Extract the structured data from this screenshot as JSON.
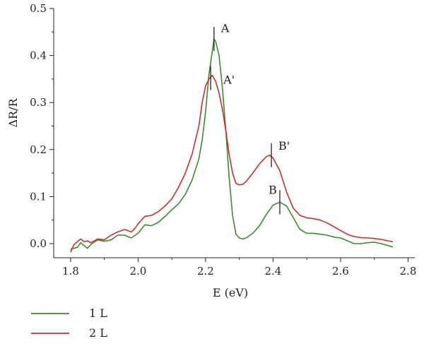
{
  "chart_data": {
    "type": "line",
    "xlabel": "E (eV)",
    "ylabel": "ΔR/R",
    "xlim": [
      1.75,
      2.82
    ],
    "ylim": [
      -0.03,
      0.5
    ],
    "xticks": [
      1.8,
      2.0,
      2.2,
      2.4,
      2.6,
      2.8
    ],
    "xtick_labels": [
      "1.8",
      "2.0",
      "2.2",
      "2.4",
      "2.6",
      "2.8"
    ],
    "yticks": [
      0.0,
      0.1,
      0.2,
      0.3,
      0.4,
      0.5
    ],
    "ytick_labels": [
      "0.0",
      "0.1",
      "0.2",
      "0.3",
      "0.4",
      "0.5"
    ],
    "grid": false,
    "legend_position": "bottom-left",
    "series": [
      {
        "name": "1 L",
        "color": "#3a8c2e",
        "x": [
          1.8,
          1.82,
          1.83,
          1.84,
          1.85,
          1.86,
          1.88,
          1.9,
          1.92,
          1.94,
          1.96,
          1.98,
          2.0,
          2.02,
          2.04,
          2.06,
          2.08,
          2.1,
          2.12,
          2.14,
          2.16,
          2.18,
          2.19,
          2.2,
          2.21,
          2.22,
          2.225,
          2.23,
          2.24,
          2.25,
          2.26,
          2.27,
          2.28,
          2.29,
          2.3,
          2.31,
          2.32,
          2.34,
          2.36,
          2.38,
          2.4,
          2.42,
          2.44,
          2.46,
          2.48,
          2.5,
          2.52,
          2.54,
          2.56,
          2.58,
          2.6,
          2.62,
          2.64,
          2.66,
          2.68,
          2.7,
          2.72,
          2.74,
          2.755
        ],
        "y": [
          -0.012,
          -0.008,
          0.002,
          -0.004,
          -0.01,
          -0.002,
          0.008,
          0.005,
          0.008,
          0.018,
          0.018,
          0.012,
          0.022,
          0.04,
          0.038,
          0.045,
          0.058,
          0.072,
          0.085,
          0.105,
          0.135,
          0.18,
          0.22,
          0.28,
          0.36,
          0.41,
          0.435,
          0.43,
          0.4,
          0.33,
          0.24,
          0.14,
          0.06,
          0.02,
          0.012,
          0.01,
          0.012,
          0.022,
          0.038,
          0.062,
          0.082,
          0.088,
          0.08,
          0.055,
          0.03,
          0.022,
          0.022,
          0.02,
          0.018,
          0.014,
          0.012,
          0.006,
          0.0,
          0.0,
          0.002,
          0.003,
          0.0,
          -0.004,
          -0.007
        ]
      },
      {
        "name": "2 L",
        "color": "#d42a2a",
        "x": [
          1.8,
          1.81,
          1.82,
          1.83,
          1.84,
          1.85,
          1.86,
          1.88,
          1.9,
          1.92,
          1.94,
          1.96,
          1.98,
          1.99,
          2.0,
          2.02,
          2.04,
          2.06,
          2.08,
          2.1,
          2.12,
          2.14,
          2.16,
          2.18,
          2.19,
          2.2,
          2.21,
          2.22,
          2.23,
          2.24,
          2.25,
          2.26,
          2.27,
          2.28,
          2.29,
          2.3,
          2.31,
          2.32,
          2.34,
          2.36,
          2.38,
          2.39,
          2.4,
          2.42,
          2.44,
          2.46,
          2.48,
          2.5,
          2.52,
          2.54,
          2.56,
          2.58,
          2.6,
          2.62,
          2.64,
          2.66,
          2.68,
          2.7,
          2.72,
          2.74,
          2.755
        ],
        "y": [
          -0.018,
          -0.002,
          0.004,
          0.01,
          0.004,
          0.006,
          0.002,
          0.01,
          0.008,
          0.018,
          0.025,
          0.03,
          0.025,
          0.032,
          0.042,
          0.058,
          0.06,
          0.068,
          0.08,
          0.095,
          0.12,
          0.15,
          0.19,
          0.25,
          0.3,
          0.335,
          0.35,
          0.358,
          0.345,
          0.32,
          0.285,
          0.24,
          0.19,
          0.15,
          0.128,
          0.125,
          0.126,
          0.132,
          0.15,
          0.17,
          0.185,
          0.188,
          0.182,
          0.155,
          0.11,
          0.075,
          0.06,
          0.055,
          0.053,
          0.05,
          0.044,
          0.036,
          0.028,
          0.02,
          0.015,
          0.013,
          0.012,
          0.011,
          0.009,
          0.006,
          0.004
        ]
      }
    ],
    "annotations": [
      {
        "label": "A",
        "x": 2.225,
        "y": 0.435
      },
      {
        "label": "A'",
        "x": 2.215,
        "y": 0.352
      },
      {
        "label": "B'",
        "x": 2.395,
        "y": 0.188
      },
      {
        "label": "B",
        "x": 2.42,
        "y": 0.088
      }
    ]
  }
}
